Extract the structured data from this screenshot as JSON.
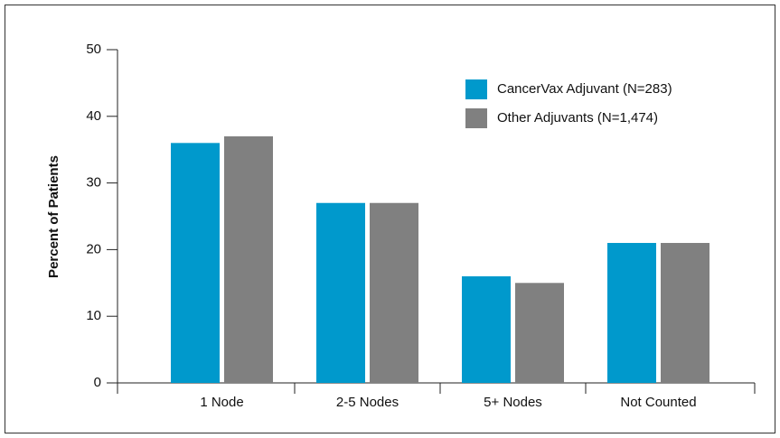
{
  "chart_data": {
    "type": "bar",
    "y_label": "Percent of Patients",
    "categories": [
      "1 Node",
      "2-5 Nodes",
      "5+ Nodes",
      "Not Counted"
    ],
    "series": [
      {
        "name": "CancerVax Adjuvant (N=283)",
        "color": "#0099cc",
        "values": [
          36,
          27,
          16,
          21
        ]
      },
      {
        "name": "Other Adjuvants (N=1,474)",
        "color": "#808080",
        "values": [
          37,
          27,
          15,
          21
        ]
      }
    ],
    "ylim": [
      0,
      50
    ],
    "yticks": [
      0,
      10,
      20,
      30,
      40,
      50
    ],
    "grid": false,
    "legend": "top-right"
  }
}
